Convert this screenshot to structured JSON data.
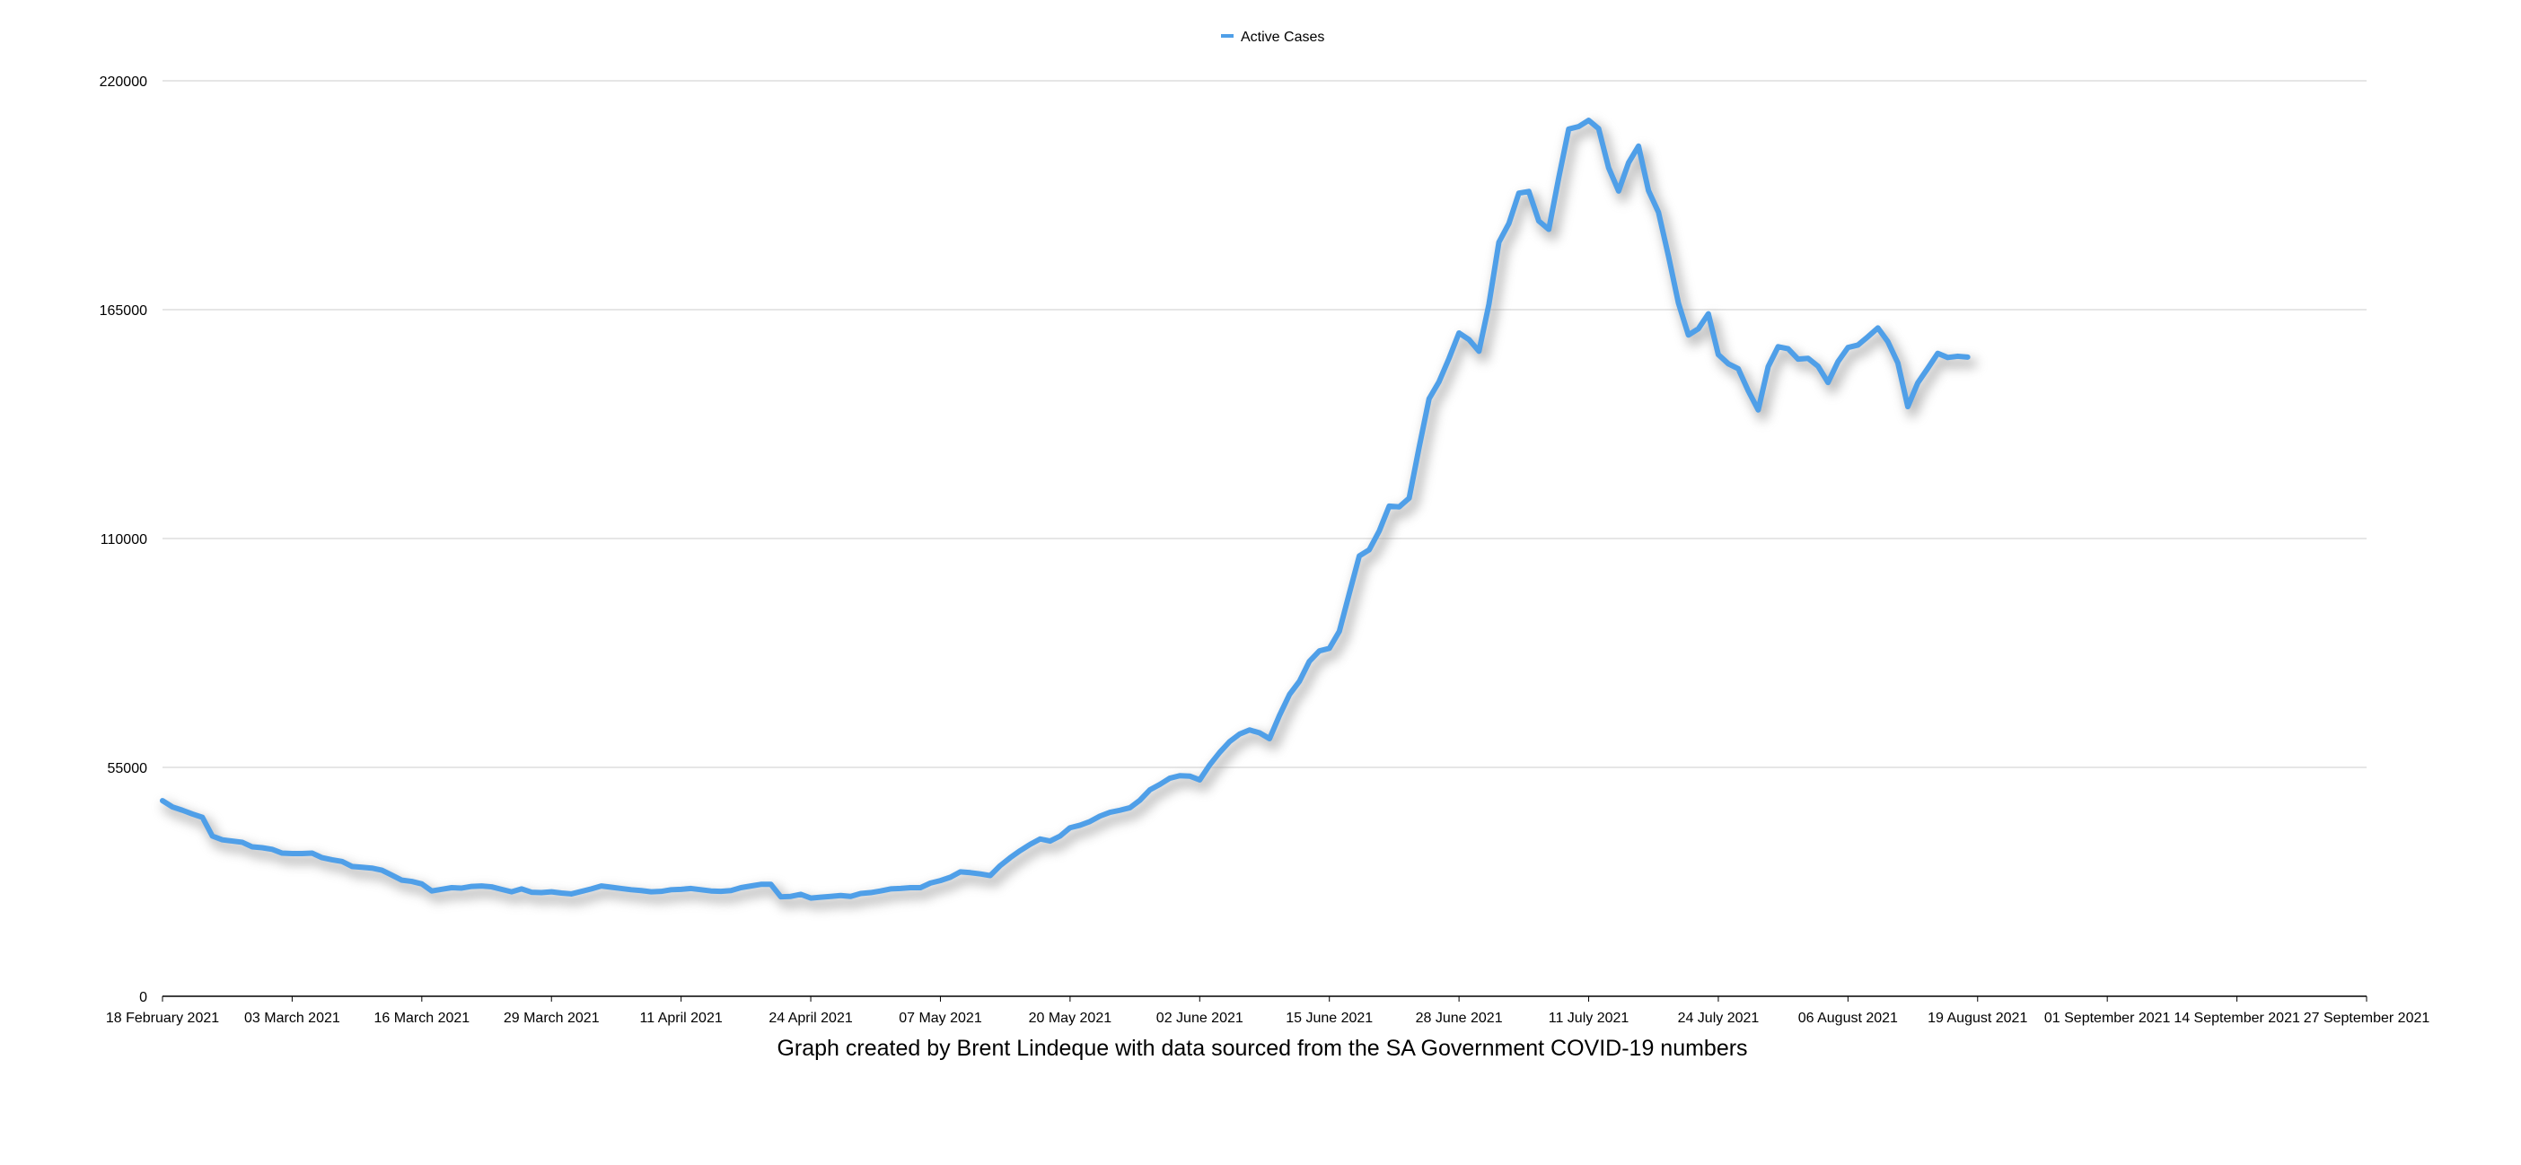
{
  "colors": {
    "series": "#4f9fe8",
    "shadow": "#9a9a9a",
    "grid": "#d6d6d6",
    "axis": "#000000"
  },
  "legend": {
    "label": "Active Cases",
    "position": "top-center"
  },
  "caption": "Graph created by Brent Lindeque with data sourced from the SA Government COVID-19 numbers",
  "chart_data": {
    "type": "line",
    "title": "",
    "xlabel": "",
    "ylabel": "",
    "grid": "horizontal",
    "legend_position": "top-center",
    "ylim": [
      0,
      220000
    ],
    "xlim": [
      "2021-02-18",
      "2021-09-27"
    ],
    "y_ticks": [
      {
        "value": 0,
        "label": "0"
      },
      {
        "value": 55000,
        "label": "55000"
      },
      {
        "value": 110000,
        "label": "110000"
      },
      {
        "value": 165000,
        "label": "165000"
      },
      {
        "value": 220000,
        "label": "220000"
      }
    ],
    "x_ticks": [
      {
        "date": "2021-02-18",
        "label": "18 February 2021"
      },
      {
        "date": "2021-03-03",
        "label": "03 March 2021"
      },
      {
        "date": "2021-03-16",
        "label": "16 March 2021"
      },
      {
        "date": "2021-03-29",
        "label": "29 March 2021"
      },
      {
        "date": "2021-04-11",
        "label": "11 April 2021"
      },
      {
        "date": "2021-04-24",
        "label": "24 April 2021"
      },
      {
        "date": "2021-05-07",
        "label": "07 May 2021"
      },
      {
        "date": "2021-05-20",
        "label": "20 May 2021"
      },
      {
        "date": "2021-06-02",
        "label": "02 June 2021"
      },
      {
        "date": "2021-06-15",
        "label": "15 June 2021"
      },
      {
        "date": "2021-06-28",
        "label": "28 June 2021"
      },
      {
        "date": "2021-07-11",
        "label": "11 July 2021"
      },
      {
        "date": "2021-07-24",
        "label": "24 July 2021"
      },
      {
        "date": "2021-08-06",
        "label": "06 August 2021"
      },
      {
        "date": "2021-08-19",
        "label": "19 August 2021"
      },
      {
        "date": "2021-09-01",
        "label": "01 September 2021"
      },
      {
        "date": "2021-09-14",
        "label": "14 September 2021"
      },
      {
        "date": "2021-09-27",
        "label": "27 September 2021"
      }
    ],
    "series": [
      {
        "name": "Active Cases",
        "points": [
          [
            "2021-02-18",
            47000
          ],
          [
            "2021-02-19",
            45500
          ],
          [
            "2021-02-20",
            44700
          ],
          [
            "2021-02-21",
            43800
          ],
          [
            "2021-02-22",
            43000
          ],
          [
            "2021-02-23",
            38500
          ],
          [
            "2021-02-24",
            37600
          ],
          [
            "2021-02-25",
            37300
          ],
          [
            "2021-02-26",
            37000
          ],
          [
            "2021-02-27",
            35900
          ],
          [
            "2021-02-28",
            35700
          ],
          [
            "2021-03-01",
            35300
          ],
          [
            "2021-03-02",
            34400
          ],
          [
            "2021-03-03",
            34300
          ],
          [
            "2021-03-04",
            34300
          ],
          [
            "2021-03-05",
            34400
          ],
          [
            "2021-03-06",
            33300
          ],
          [
            "2021-03-07",
            32800
          ],
          [
            "2021-03-08",
            32400
          ],
          [
            "2021-03-09",
            31200
          ],
          [
            "2021-03-10",
            31000
          ],
          [
            "2021-03-11",
            30800
          ],
          [
            "2021-03-12",
            30300
          ],
          [
            "2021-03-13",
            29100
          ],
          [
            "2021-03-14",
            27900
          ],
          [
            "2021-03-15",
            27600
          ],
          [
            "2021-03-16",
            27000
          ],
          [
            "2021-03-17",
            25300
          ],
          [
            "2021-03-18",
            25700
          ],
          [
            "2021-03-19",
            26100
          ],
          [
            "2021-03-20",
            26000
          ],
          [
            "2021-03-21",
            26400
          ],
          [
            "2021-03-22",
            26500
          ],
          [
            "2021-03-23",
            26300
          ],
          [
            "2021-03-24",
            25700
          ],
          [
            "2021-03-25",
            25100
          ],
          [
            "2021-03-26",
            25800
          ],
          [
            "2021-03-27",
            25000
          ],
          [
            "2021-03-28",
            24900
          ],
          [
            "2021-03-29",
            25100
          ],
          [
            "2021-03-30",
            24800
          ],
          [
            "2021-03-31",
            24600
          ],
          [
            "2021-04-01",
            25200
          ],
          [
            "2021-04-02",
            25800
          ],
          [
            "2021-04-03",
            26500
          ],
          [
            "2021-04-04",
            26200
          ],
          [
            "2021-04-05",
            25900
          ],
          [
            "2021-04-06",
            25600
          ],
          [
            "2021-04-07",
            25400
          ],
          [
            "2021-04-08",
            25100
          ],
          [
            "2021-04-09",
            25200
          ],
          [
            "2021-04-10",
            25600
          ],
          [
            "2021-04-11",
            25700
          ],
          [
            "2021-04-12",
            25900
          ],
          [
            "2021-04-13",
            25600
          ],
          [
            "2021-04-14",
            25300
          ],
          [
            "2021-04-15",
            25200
          ],
          [
            "2021-04-16",
            25400
          ],
          [
            "2021-04-17",
            26100
          ],
          [
            "2021-04-18",
            26500
          ],
          [
            "2021-04-19",
            26900
          ],
          [
            "2021-04-20",
            26900
          ],
          [
            "2021-04-21",
            23900
          ],
          [
            "2021-04-22",
            24000
          ],
          [
            "2021-04-23",
            24500
          ],
          [
            "2021-04-24",
            23600
          ],
          [
            "2021-04-25",
            23800
          ],
          [
            "2021-04-26",
            24000
          ],
          [
            "2021-04-27",
            24200
          ],
          [
            "2021-04-28",
            24000
          ],
          [
            "2021-04-29",
            24700
          ],
          [
            "2021-04-30",
            24900
          ],
          [
            "2021-05-01",
            25300
          ],
          [
            "2021-05-02",
            25800
          ],
          [
            "2021-05-03",
            25900
          ],
          [
            "2021-05-04",
            26100
          ],
          [
            "2021-05-05",
            26100
          ],
          [
            "2021-05-06",
            27200
          ],
          [
            "2021-05-07",
            27800
          ],
          [
            "2021-05-08",
            28600
          ],
          [
            "2021-05-09",
            29900
          ],
          [
            "2021-05-10",
            29700
          ],
          [
            "2021-05-11",
            29400
          ],
          [
            "2021-05-12",
            29000
          ],
          [
            "2021-05-13",
            31400
          ],
          [
            "2021-05-14",
            33300
          ],
          [
            "2021-05-15",
            35000
          ],
          [
            "2021-05-16",
            36500
          ],
          [
            "2021-05-17",
            37800
          ],
          [
            "2021-05-18",
            37300
          ],
          [
            "2021-05-19",
            38500
          ],
          [
            "2021-05-20",
            40500
          ],
          [
            "2021-05-21",
            41100
          ],
          [
            "2021-05-22",
            42000
          ],
          [
            "2021-05-23",
            43300
          ],
          [
            "2021-05-24",
            44200
          ],
          [
            "2021-05-25",
            44700
          ],
          [
            "2021-05-26",
            45300
          ],
          [
            "2021-05-27",
            47100
          ],
          [
            "2021-05-28",
            49600
          ],
          [
            "2021-05-29",
            50900
          ],
          [
            "2021-05-30",
            52400
          ],
          [
            "2021-05-31",
            53000
          ],
          [
            "2021-06-01",
            52900
          ],
          [
            "2021-06-02",
            52000
          ],
          [
            "2021-06-03",
            55600
          ],
          [
            "2021-06-04",
            58600
          ],
          [
            "2021-06-05",
            61200
          ],
          [
            "2021-06-06",
            63000
          ],
          [
            "2021-06-07",
            64000
          ],
          [
            "2021-06-08",
            63300
          ],
          [
            "2021-06-09",
            61900
          ],
          [
            "2021-06-10",
            67500
          ],
          [
            "2021-06-11",
            72500
          ],
          [
            "2021-06-12",
            75700
          ],
          [
            "2021-06-13",
            80500
          ],
          [
            "2021-06-14",
            83000
          ],
          [
            "2021-06-15",
            83600
          ],
          [
            "2021-06-16",
            87700
          ],
          [
            "2021-06-17",
            96800
          ],
          [
            "2021-06-18",
            105800
          ],
          [
            "2021-06-19",
            107300
          ],
          [
            "2021-06-20",
            111800
          ],
          [
            "2021-06-21",
            117800
          ],
          [
            "2021-06-22",
            117600
          ],
          [
            "2021-06-23",
            119700
          ],
          [
            "2021-06-24",
            131900
          ],
          [
            "2021-06-25",
            143600
          ],
          [
            "2021-06-26",
            147700
          ],
          [
            "2021-06-27",
            153300
          ],
          [
            "2021-06-28",
            159400
          ],
          [
            "2021-06-29",
            157800
          ],
          [
            "2021-06-30",
            155000
          ],
          [
            "2021-07-01",
            166300
          ],
          [
            "2021-07-02",
            181200
          ],
          [
            "2021-07-03",
            185700
          ],
          [
            "2021-07-04",
            193000
          ],
          [
            "2021-07-05",
            193400
          ],
          [
            "2021-07-06",
            186300
          ],
          [
            "2021-07-07",
            184300
          ],
          [
            "2021-07-08",
            196700
          ],
          [
            "2021-07-09",
            208400
          ],
          [
            "2021-07-10",
            209000
          ],
          [
            "2021-07-11",
            210500
          ],
          [
            "2021-07-12",
            208500
          ],
          [
            "2021-07-13",
            199100
          ],
          [
            "2021-07-14",
            193500
          ],
          [
            "2021-07-15",
            200300
          ],
          [
            "2021-07-16",
            204300
          ],
          [
            "2021-07-17",
            193600
          ],
          [
            "2021-07-18",
            188400
          ],
          [
            "2021-07-19",
            177900
          ],
          [
            "2021-07-20",
            166600
          ],
          [
            "2021-07-21",
            158900
          ],
          [
            "2021-07-22",
            160400
          ],
          [
            "2021-07-23",
            164000
          ],
          [
            "2021-07-24",
            154200
          ],
          [
            "2021-07-25",
            152000
          ],
          [
            "2021-07-26",
            150800
          ],
          [
            "2021-07-27",
            145500
          ],
          [
            "2021-07-28",
            140900
          ],
          [
            "2021-07-29",
            151300
          ],
          [
            "2021-07-30",
            156100
          ],
          [
            "2021-07-31",
            155600
          ],
          [
            "2021-08-01",
            153100
          ],
          [
            "2021-08-02",
            153300
          ],
          [
            "2021-08-03",
            151400
          ],
          [
            "2021-08-04",
            147500
          ],
          [
            "2021-08-05",
            152500
          ],
          [
            "2021-08-06",
            155900
          ],
          [
            "2021-08-07",
            156500
          ],
          [
            "2021-08-08",
            158500
          ],
          [
            "2021-08-09",
            160600
          ],
          [
            "2021-08-10",
            157300
          ],
          [
            "2021-08-11",
            152200
          ],
          [
            "2021-08-12",
            141700
          ],
          [
            "2021-08-13",
            147400
          ],
          [
            "2021-08-14",
            150900
          ],
          [
            "2021-08-15",
            154500
          ],
          [
            "2021-08-16",
            153500
          ],
          [
            "2021-08-17",
            153800
          ],
          [
            "2021-08-18",
            153600
          ]
        ]
      }
    ]
  }
}
